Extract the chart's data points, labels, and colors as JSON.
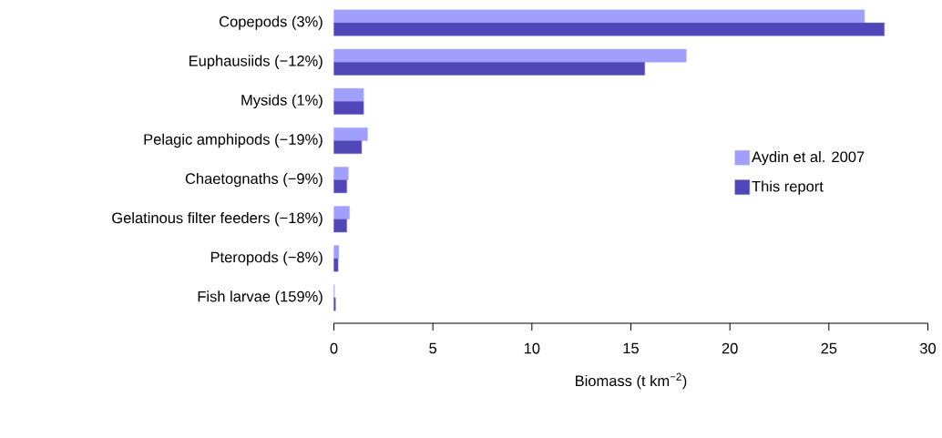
{
  "chart_data": {
    "type": "bar",
    "orientation": "horizontal",
    "categories": [
      "Copepods (3%)",
      "Euphausiids (−12%)",
      "Mysids (1%)",
      "Pelagic amphipods (−19%)",
      "Chaetognaths (−9%)",
      "Gelatinous filter feeders (−18%)",
      "Pteropods (−8%)",
      "Fish larvae (159%)"
    ],
    "series": [
      {
        "name": "Aydin et al. 2007",
        "color": "#a0a0fc",
        "values": [
          26.8,
          17.8,
          1.5,
          1.7,
          0.73,
          0.79,
          0.25,
          0.03
        ]
      },
      {
        "name": "This report",
        "color": "#5046b8",
        "values": [
          27.8,
          15.7,
          1.5,
          1.4,
          0.65,
          0.65,
          0.21,
          0.08
        ]
      }
    ],
    "xlabel": "Biomass (t km$^{−2}$)",
    "xlim": [
      0,
      30
    ],
    "xticks": [
      0,
      5,
      10,
      15,
      20,
      25,
      30
    ],
    "legend": "right"
  }
}
